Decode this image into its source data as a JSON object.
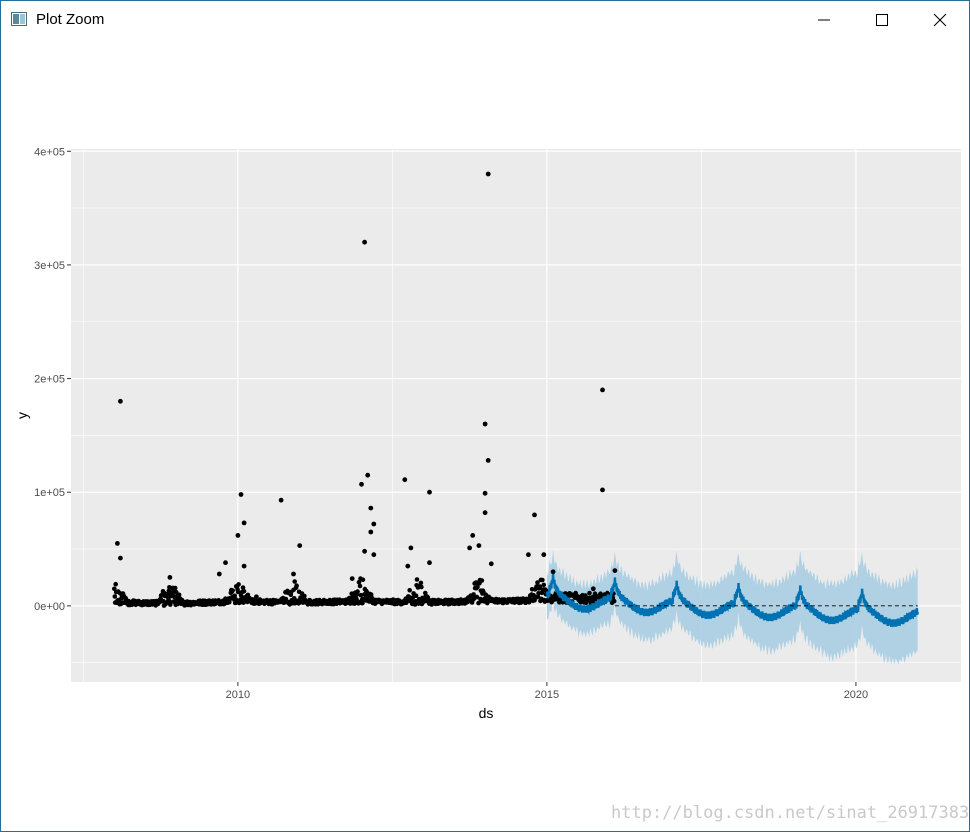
{
  "window": {
    "title": "Plot Zoom",
    "icons": {
      "app": "plot-zoom-app-icon",
      "minimize": "minimize-icon",
      "maximize": "maximize-icon",
      "close": "close-icon"
    }
  },
  "watermark": "http://blog.csdn.net/sinat_26917383",
  "colors": {
    "panel": "#ebebeb",
    "grid": "#ffffff",
    "points": "#000000",
    "forecast": "#0072B2",
    "interval": "#a6cde3"
  },
  "chart_data": {
    "type": "scatter",
    "xlabel": "ds",
    "ylabel": "y",
    "xlim": [
      2007.3,
      2021.7
    ],
    "ylim": [
      -67000,
      402000
    ],
    "x_ticks": [
      2010,
      2015,
      2020
    ],
    "x_tick_labels": [
      "2010",
      "2015",
      "2020"
    ],
    "y_ticks": [
      0,
      100000,
      200000,
      300000,
      400000
    ],
    "y_tick_labels": [
      "0e+00",
      "1e+05",
      "2e+05",
      "3e+05",
      "4e+05"
    ],
    "grid": true,
    "legend": "none",
    "series": [
      {
        "kind": "observed-points",
        "baseline": [
          [
            2008.0,
            3000
          ],
          [
            2009.0,
            2000
          ],
          [
            2010.0,
            4000
          ],
          [
            2011.0,
            3000
          ],
          [
            2012.0,
            4000
          ],
          [
            2013.0,
            3000
          ],
          [
            2014.0,
            4000
          ],
          [
            2015.1,
            5000
          ]
        ],
        "seasonal_peaks": [
          2008.0,
          2008.9,
          2010.0,
          2010.9,
          2012.0,
          2012.9,
          2013.9,
          2014.9
        ],
        "outliers": [
          [
            2008.1,
            180000
          ],
          [
            2008.05,
            55000
          ],
          [
            2008.1,
            42000
          ],
          [
            2008.9,
            25000
          ],
          [
            2009.7,
            28000
          ],
          [
            2009.8,
            38000
          ],
          [
            2010.05,
            98000
          ],
          [
            2010.0,
            62000
          ],
          [
            2010.1,
            73000
          ],
          [
            2010.1,
            35000
          ],
          [
            2010.3,
            8000
          ],
          [
            2010.7,
            93000
          ],
          [
            2010.9,
            28000
          ],
          [
            2011.0,
            53000
          ],
          [
            2011.85,
            24000
          ],
          [
            2012.0,
            107000
          ],
          [
            2012.05,
            320000
          ],
          [
            2012.1,
            115000
          ],
          [
            2012.15,
            86000
          ],
          [
            2012.2,
            72000
          ],
          [
            2012.15,
            65000
          ],
          [
            2012.05,
            48000
          ],
          [
            2012.2,
            45000
          ],
          [
            2012.7,
            111000
          ],
          [
            2012.8,
            51000
          ],
          [
            2012.75,
            35000
          ],
          [
            2013.1,
            100000
          ],
          [
            2013.1,
            38000
          ],
          [
            2013.75,
            51000
          ],
          [
            2013.8,
            62000
          ],
          [
            2013.9,
            53000
          ],
          [
            2014.0,
            160000
          ],
          [
            2014.0,
            99000
          ],
          [
            2014.0,
            82000
          ],
          [
            2014.05,
            128000
          ],
          [
            2014.05,
            380000
          ],
          [
            2014.1,
            37000
          ],
          [
            2014.7,
            45000
          ],
          [
            2014.8,
            80000
          ],
          [
            2014.95,
            45000
          ],
          [
            2015.1,
            30000
          ],
          [
            2015.75,
            15000
          ],
          [
            2015.9,
            190000
          ],
          [
            2015.9,
            102000
          ],
          [
            2016.0,
            10000
          ],
          [
            2016.1,
            31000
          ]
        ]
      },
      {
        "kind": "forecast-line",
        "x_range": [
          2015.0,
          2021.0
        ],
        "trend": [
          [
            2015.0,
            5000
          ],
          [
            2016.0,
            2000
          ],
          [
            2017.0,
            -1000
          ],
          [
            2018.0,
            -3000
          ],
          [
            2019.0,
            -5000
          ],
          [
            2020.0,
            -8000
          ],
          [
            2021.0,
            -10000
          ]
        ],
        "yearly_spikes": [
          2015.1,
          2016.1,
          2017.1,
          2018.1,
          2019.1,
          2020.1
        ]
      },
      {
        "kind": "uncertainty-band",
        "half_width_start": 18000,
        "half_width_end": 33000
      },
      {
        "kind": "zero-cap-dashed",
        "y": 0
      }
    ]
  }
}
